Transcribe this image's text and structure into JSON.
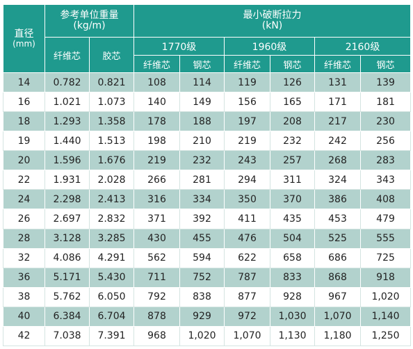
{
  "header": {
    "diameter": "直径",
    "diameter_unit": "(mm)",
    "weight": "参考单位重量",
    "weight_unit": "(kg/m)",
    "force": "最小破断拉力",
    "force_unit": "(kN)",
    "weight_cores": [
      "纤维芯",
      "胶芯"
    ],
    "grades": [
      "1770级",
      "1960级",
      "2160级"
    ],
    "force_cores": [
      "纤维芯",
      "钢芯"
    ]
  },
  "rows": [
    [
      "14",
      "0.782",
      "0.821",
      "108",
      "114",
      "119",
      "126",
      "131",
      "139"
    ],
    [
      "16",
      "1.021",
      "1.073",
      "140",
      "149",
      "156",
      "165",
      "171",
      "181"
    ],
    [
      "18",
      "1.293",
      "1.358",
      "178",
      "188",
      "197",
      "208",
      "217",
      "230"
    ],
    [
      "19",
      "1.440",
      "1.513",
      "198",
      "210",
      "219",
      "232",
      "242",
      "256"
    ],
    [
      "20",
      "1.596",
      "1.676",
      "219",
      "232",
      "243",
      "257",
      "268",
      "283"
    ],
    [
      "22",
      "1.931",
      "2.028",
      "266",
      "281",
      "294",
      "311",
      "324",
      "343"
    ],
    [
      "24",
      "2.298",
      "2.413",
      "316",
      "334",
      "350",
      "370",
      "386",
      "408"
    ],
    [
      "26",
      "2.697",
      "2.832",
      "371",
      "392",
      "411",
      "435",
      "453",
      "479"
    ],
    [
      "28",
      "3.128",
      "3.285",
      "430",
      "455",
      "476",
      "504",
      "525",
      "555"
    ],
    [
      "32",
      "4.086",
      "4.291",
      "562",
      "594",
      "622",
      "658",
      "686",
      "725"
    ],
    [
      "36",
      "5.171",
      "5.430",
      "711",
      "752",
      "787",
      "833",
      "868",
      "918"
    ],
    [
      "38",
      "5.762",
      "6.050",
      "792",
      "838",
      "877",
      "928",
      "967",
      "1,020"
    ],
    [
      "40",
      "6.384",
      "6.704",
      "878",
      "929",
      "972",
      "1,030",
      "1,070",
      "1,140"
    ],
    [
      "42",
      "7.038",
      "7.391",
      "968",
      "1,020",
      "1,070",
      "1,130",
      "1,180",
      "1,250"
    ]
  ]
}
